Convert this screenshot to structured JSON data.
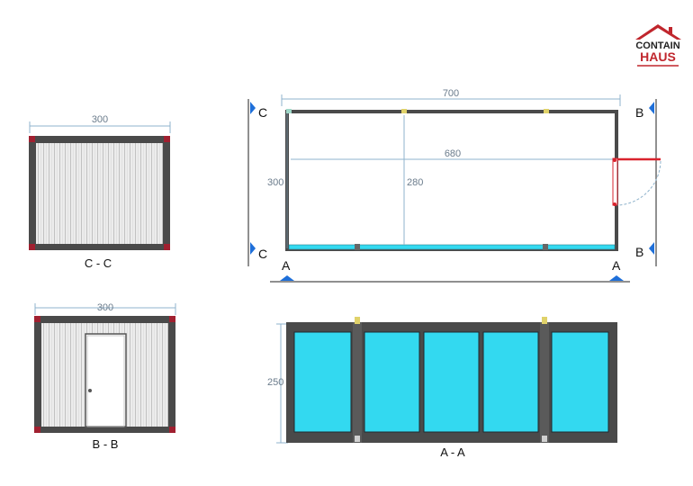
{
  "logo": {
    "line1": "CONTAIN",
    "line2": "HAUS",
    "colors": {
      "roof": "#c0262d",
      "text_dark": "#222222",
      "text_red": "#c0262d"
    }
  },
  "views": {
    "cc": {
      "caption": "C - C",
      "width_label": "300"
    },
    "bb": {
      "caption": "B - B",
      "width_label": "300"
    },
    "plan": {
      "length_label": "700",
      "inner_length_label": "680",
      "width_label": "300",
      "inner_width_label": "280",
      "section_marks": {
        "c_top": "C",
        "c_bottom": "C",
        "b_top": "B",
        "b_bottom": "B",
        "a_left": "A",
        "a_right": "A"
      }
    },
    "aa": {
      "caption": "A - A",
      "height_label": "250",
      "window_count": 5
    }
  },
  "colors": {
    "frame": "#4a4a4a",
    "glass": "#33d9f0",
    "dimension": "#8fb3cc",
    "door_swing": "#d9232d",
    "marker": "#1e6fd9",
    "wall_panel": "#ececec"
  }
}
